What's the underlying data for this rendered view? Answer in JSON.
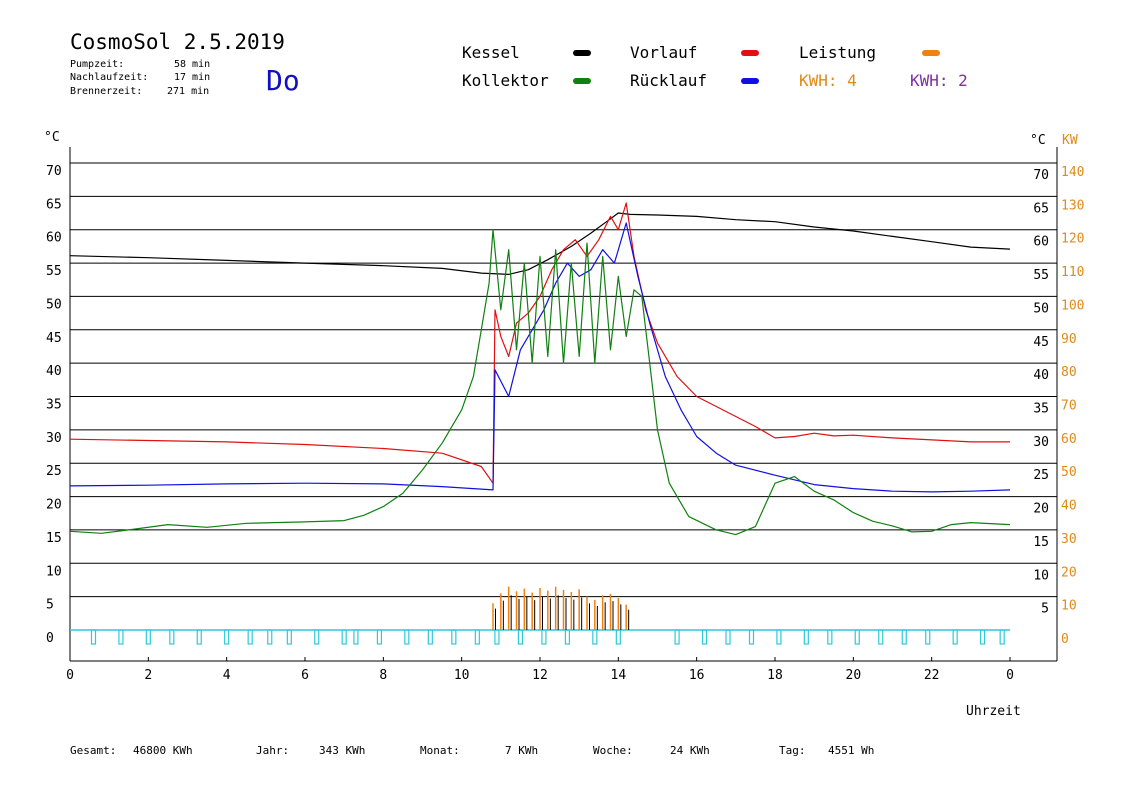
{
  "header": {
    "title": "CosmoSol 2.5.2019",
    "stats": [
      {
        "label": "Pumpzeit:",
        "value": "58 min"
      },
      {
        "label": "Nachlaufzeit:",
        "value": "17 min"
      },
      {
        "label": "Brennerzeit:",
        "value": "271 min"
      }
    ],
    "weekday": "Do"
  },
  "legend": [
    {
      "label": "Kessel",
      "color": "#000000"
    },
    {
      "label": "Vorlauf",
      "color": "#e01010"
    },
    {
      "label": "Leistung",
      "color": "#f08010"
    },
    {
      "label": "Kollektor",
      "color": "#108010"
    },
    {
      "label": "Rücklauf",
      "color": "#1010e0"
    }
  ],
  "kwh": [
    {
      "label": "KWH: 4",
      "color": "#e08a1a"
    },
    {
      "label": "KWH: 2",
      "color": "#8030a0"
    }
  ],
  "footer": [
    {
      "label": "Gesamt:",
      "value": "46800 KWh"
    },
    {
      "label": "Jahr:",
      "value": "343 KWh"
    },
    {
      "label": "Monat:",
      "value": "7 KWh"
    },
    {
      "label": "Woche:",
      "value": "24 KWh"
    },
    {
      "label": "Tag:",
      "value": "4551 Wh"
    }
  ],
  "chart_data": {
    "type": "line",
    "xlabel": "Uhrzeit",
    "x_ticks": [
      0,
      2,
      4,
      6,
      8,
      10,
      12,
      14,
      16,
      18,
      20,
      22
    ],
    "x_tick_labels": [
      "0",
      "2",
      "4",
      "6",
      "8",
      "10",
      "12",
      "14",
      "16",
      "18",
      "20",
      "22",
      "0"
    ],
    "xlim": [
      0,
      24
    ],
    "y_left_label": "°C",
    "y_left_ticks": [
      0,
      5,
      10,
      15,
      20,
      25,
      30,
      35,
      40,
      45,
      50,
      55,
      60,
      65,
      70
    ],
    "y_right_label": "°C",
    "y_right_ticks": [
      5,
      10,
      15,
      20,
      25,
      30,
      35,
      40,
      45,
      50,
      55,
      60,
      65,
      70
    ],
    "y_right2_label": "KW",
    "y_right2_ticks": [
      0,
      10,
      20,
      30,
      40,
      50,
      60,
      70,
      80,
      90,
      100,
      110,
      120,
      130,
      140
    ],
    "ylim": [
      0,
      70
    ],
    "grid": true,
    "series": [
      {
        "name": "Kessel",
        "color": "#000000",
        "points": [
          [
            0,
            56.1
          ],
          [
            2,
            55.8
          ],
          [
            4,
            55.4
          ],
          [
            6,
            55.0
          ],
          [
            8,
            54.6
          ],
          [
            9.5,
            54.2
          ],
          [
            10.5,
            53.5
          ],
          [
            11.2,
            53.3
          ],
          [
            11.7,
            54
          ],
          [
            12.2,
            55.5
          ],
          [
            12.8,
            57.5
          ],
          [
            13.3,
            59.5
          ],
          [
            13.7,
            61.2
          ],
          [
            14,
            62.5
          ],
          [
            14.3,
            62.3
          ],
          [
            15,
            62.2
          ],
          [
            16,
            62.0
          ],
          [
            17,
            61.5
          ],
          [
            18,
            61.2
          ],
          [
            19,
            60.4
          ],
          [
            20,
            59.8
          ],
          [
            21,
            59.0
          ],
          [
            22,
            58.2
          ],
          [
            23,
            57.4
          ],
          [
            24,
            57.1
          ]
        ]
      },
      {
        "name": "Vorlauf",
        "color": "#e01010",
        "points": [
          [
            0,
            28.6
          ],
          [
            2,
            28.4
          ],
          [
            4,
            28.2
          ],
          [
            6,
            27.8
          ],
          [
            8,
            27.2
          ],
          [
            9.5,
            26.5
          ],
          [
            10.5,
            24.5
          ],
          [
            10.8,
            22
          ],
          [
            10.85,
            48
          ],
          [
            11,
            44
          ],
          [
            11.2,
            41
          ],
          [
            11.4,
            46
          ],
          [
            11.7,
            47.5
          ],
          [
            12,
            50
          ],
          [
            12.3,
            54
          ],
          [
            12.6,
            57
          ],
          [
            12.9,
            58.5
          ],
          [
            13.2,
            56
          ],
          [
            13.5,
            58.5
          ],
          [
            13.8,
            62
          ],
          [
            14,
            60
          ],
          [
            14.2,
            64
          ],
          [
            14.4,
            56
          ],
          [
            14.7,
            48
          ],
          [
            15,
            43
          ],
          [
            15.5,
            38
          ],
          [
            16,
            35
          ],
          [
            16.5,
            33.5
          ],
          [
            17,
            32
          ],
          [
            17.5,
            30.5
          ],
          [
            18,
            28.8
          ],
          [
            18.5,
            29.0
          ],
          [
            19,
            29.5
          ],
          [
            19.5,
            29.1
          ],
          [
            20,
            29.2
          ],
          [
            21,
            28.8
          ],
          [
            22,
            28.5
          ],
          [
            23,
            28.2
          ],
          [
            24,
            28.2
          ]
        ]
      },
      {
        "name": "Rücklauf",
        "color": "#1010e0",
        "points": [
          [
            0,
            21.6
          ],
          [
            2,
            21.7
          ],
          [
            4,
            21.9
          ],
          [
            6,
            22.0
          ],
          [
            8,
            21.9
          ],
          [
            9.5,
            21.5
          ],
          [
            10.8,
            21.0
          ],
          [
            10.85,
            39
          ],
          [
            11.2,
            35
          ],
          [
            11.5,
            42
          ],
          [
            11.8,
            45
          ],
          [
            12.1,
            48
          ],
          [
            12.4,
            52
          ],
          [
            12.7,
            55
          ],
          [
            13,
            53
          ],
          [
            13.3,
            54
          ],
          [
            13.6,
            57
          ],
          [
            13.9,
            55
          ],
          [
            14.2,
            61
          ],
          [
            14.5,
            53
          ],
          [
            14.8,
            46
          ],
          [
            15.2,
            38
          ],
          [
            15.6,
            33
          ],
          [
            16,
            29
          ],
          [
            16.5,
            26.5
          ],
          [
            17,
            24.7
          ],
          [
            18,
            23.2
          ],
          [
            19,
            21.8
          ],
          [
            20,
            21.2
          ],
          [
            21,
            20.8
          ],
          [
            22,
            20.7
          ],
          [
            23,
            20.8
          ],
          [
            24,
            21.0
          ]
        ]
      },
      {
        "name": "Kollektor",
        "color": "#108010",
        "points": [
          [
            0,
            14.8
          ],
          [
            0.8,
            14.5
          ],
          [
            1.5,
            15.0
          ],
          [
            2.5,
            15.8
          ],
          [
            3.5,
            15.4
          ],
          [
            4.5,
            16.0
          ],
          [
            6,
            16.2
          ],
          [
            7,
            16.4
          ],
          [
            7.5,
            17.2
          ],
          [
            8,
            18.5
          ],
          [
            8.5,
            20.5
          ],
          [
            9,
            24
          ],
          [
            9.5,
            28
          ],
          [
            10,
            33
          ],
          [
            10.3,
            38
          ],
          [
            10.5,
            45
          ],
          [
            10.7,
            52
          ],
          [
            10.8,
            60
          ],
          [
            11,
            48
          ],
          [
            11.2,
            57
          ],
          [
            11.4,
            42
          ],
          [
            11.6,
            55
          ],
          [
            11.8,
            40
          ],
          [
            12,
            56
          ],
          [
            12.2,
            41
          ],
          [
            12.4,
            57
          ],
          [
            12.6,
            40
          ],
          [
            12.8,
            55
          ],
          [
            13,
            41
          ],
          [
            13.2,
            58
          ],
          [
            13.4,
            40
          ],
          [
            13.6,
            56
          ],
          [
            13.8,
            42
          ],
          [
            14,
            53
          ],
          [
            14.2,
            44
          ],
          [
            14.4,
            51
          ],
          [
            14.6,
            50
          ],
          [
            14.8,
            40
          ],
          [
            15,
            30
          ],
          [
            15.3,
            22
          ],
          [
            15.8,
            17
          ],
          [
            16.5,
            15.0
          ],
          [
            17,
            14.3
          ],
          [
            17.5,
            15.5
          ],
          [
            18,
            22
          ],
          [
            18.5,
            23
          ],
          [
            19,
            20.8
          ],
          [
            19.5,
            19.5
          ],
          [
            20,
            17.6
          ],
          [
            20.5,
            16.3
          ],
          [
            21,
            15.6
          ],
          [
            21.5,
            14.7
          ],
          [
            22,
            14.8
          ],
          [
            22.5,
            15.8
          ],
          [
            23,
            16.1
          ],
          [
            24,
            15.8
          ]
        ]
      }
    ],
    "leistung_spikes": [
      [
        10.8,
        4
      ],
      [
        11.0,
        5.5
      ],
      [
        11.2,
        6.5
      ],
      [
        11.4,
        5.8
      ],
      [
        11.6,
        6.2
      ],
      [
        11.8,
        5.6
      ],
      [
        12.0,
        6.3
      ],
      [
        12.2,
        5.9
      ],
      [
        12.4,
        6.5
      ],
      [
        12.6,
        6.0
      ],
      [
        12.8,
        5.7
      ],
      [
        13.0,
        6.1
      ],
      [
        13.2,
        5.0
      ],
      [
        13.4,
        4.5
      ],
      [
        13.6,
        5.2
      ],
      [
        13.8,
        5.4
      ],
      [
        14.0,
        4.8
      ],
      [
        14.2,
        3.8
      ]
    ],
    "pump_markers": [
      0.6,
      1.3,
      2.0,
      2.6,
      3.3,
      4.0,
      4.6,
      5.1,
      5.6,
      6.3,
      7.0,
      7.3,
      7.9,
      8.6,
      9.2,
      9.8,
      10.4,
      10.9,
      11.5,
      12.1,
      12.7,
      13.4,
      14.0,
      15.5,
      16.2,
      16.8,
      17.4,
      18.1,
      18.8,
      19.4,
      20.1,
      20.7,
      21.3,
      21.9,
      22.6,
      23.3,
      23.8
    ]
  }
}
